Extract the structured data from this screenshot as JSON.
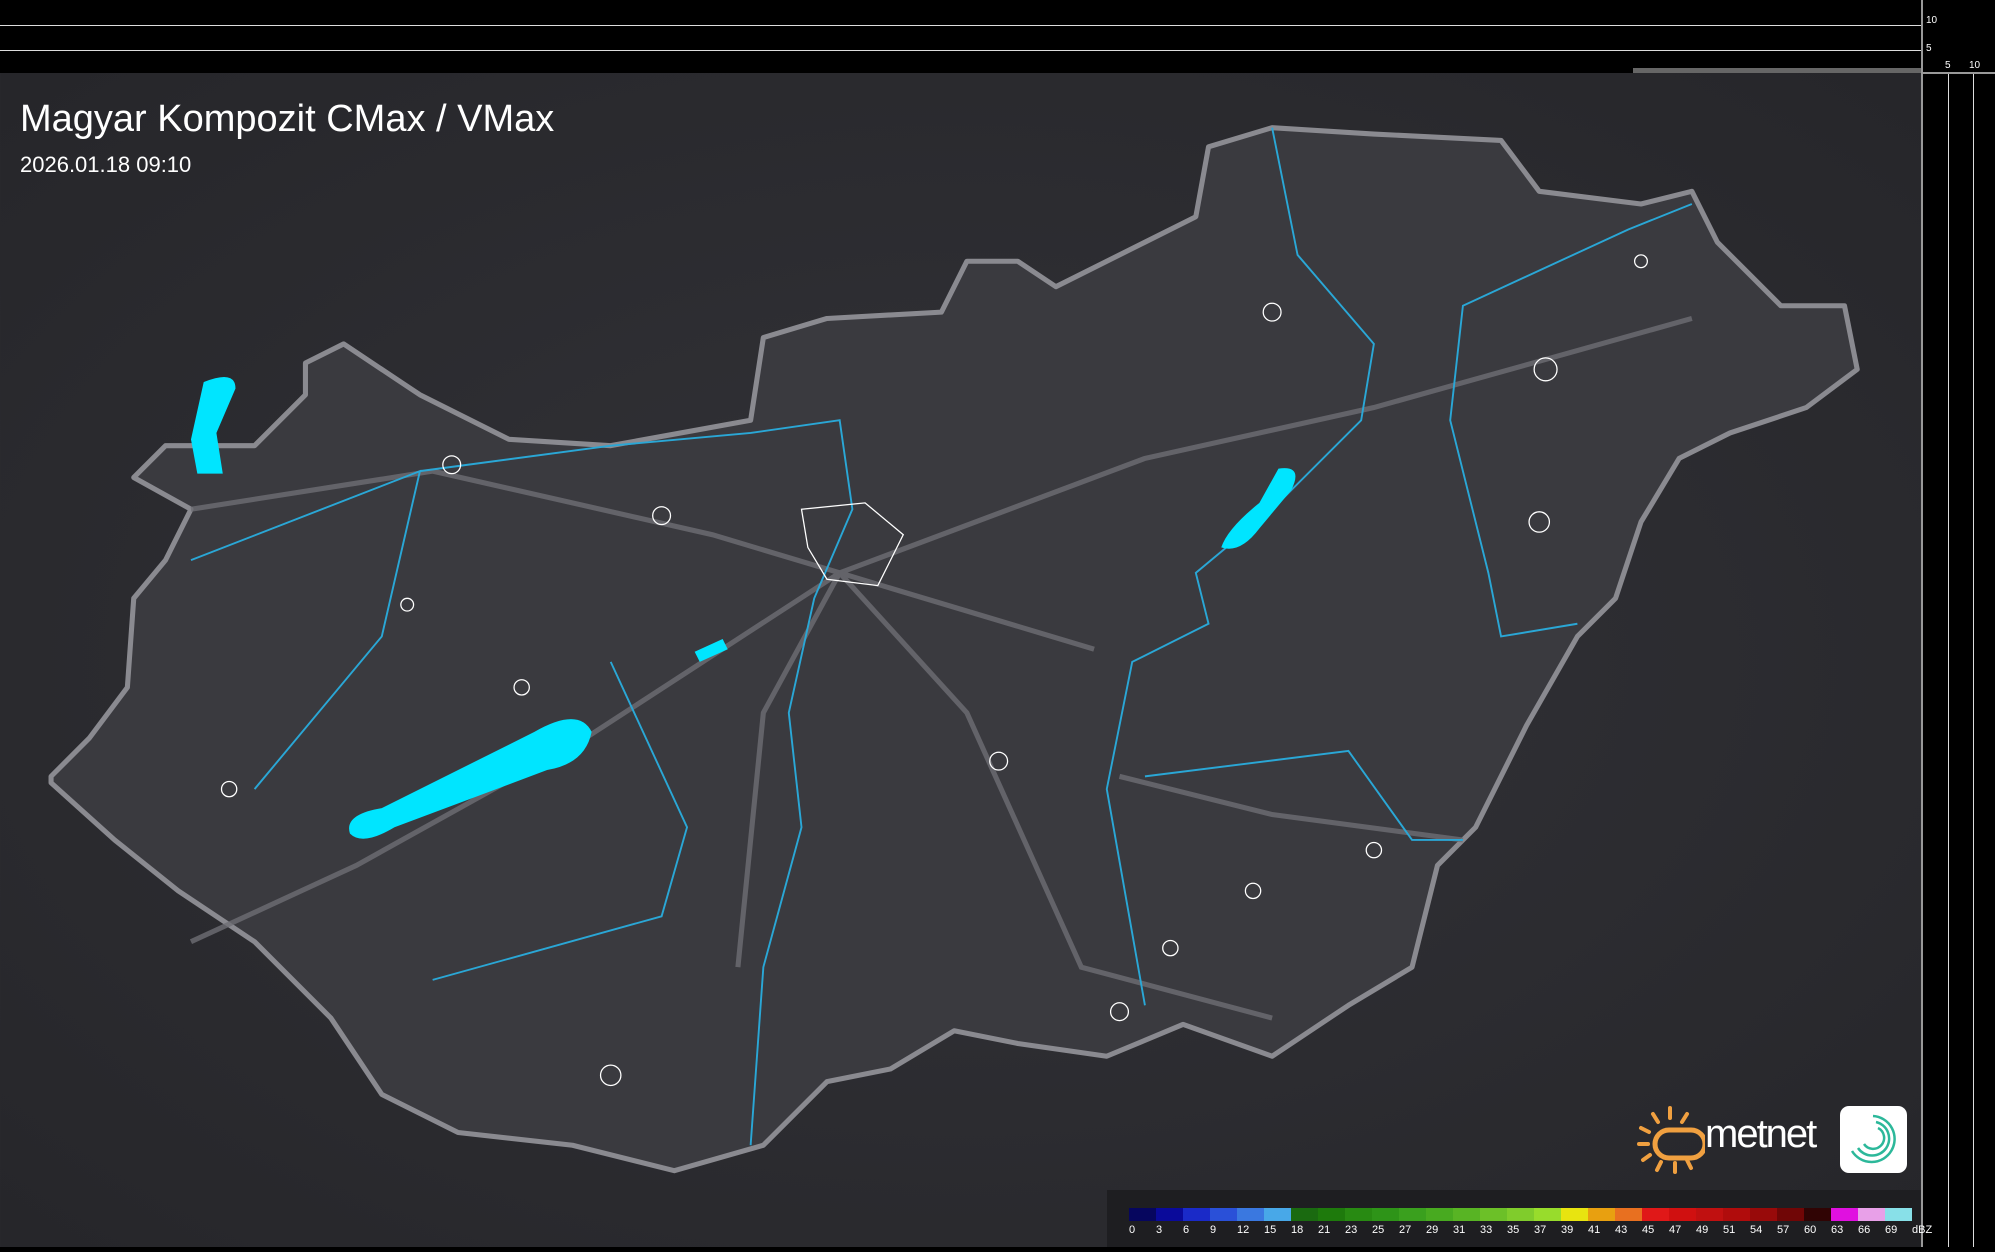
{
  "title": "Magyar Kompozit CMax / VMax",
  "timestamp": "2026.01.18 09:10",
  "axes": {
    "right_ticks": [
      "10",
      "5"
    ],
    "bottom_ticks": [
      "5",
      "10"
    ]
  },
  "logo": {
    "brand": "metnet",
    "icon": "swirl-logo-icon"
  },
  "colors": {
    "background": "#2b2b2f",
    "border": "#8a8a90",
    "water": "#00e5ff",
    "river": "#2aa7d6"
  },
  "legend": {
    "unit": "dBZ",
    "labels": [
      "0",
      "3",
      "6",
      "9",
      "12",
      "15",
      "18",
      "21",
      "23",
      "25",
      "27",
      "29",
      "31",
      "33",
      "35",
      "37",
      "39",
      "41",
      "43",
      "45",
      "47",
      "49",
      "51",
      "54",
      "57",
      "60",
      "63",
      "66",
      "69"
    ],
    "colors": [
      "#06065e",
      "#0a0a9a",
      "#1a2ac8",
      "#2a50d8",
      "#3a78e0",
      "#48a8e8",
      "#1a6a10",
      "#1e7a0c",
      "#288a12",
      "#2e9418",
      "#3aa01e",
      "#48aa20",
      "#58b424",
      "#6cc028",
      "#80cc2c",
      "#98dc2c",
      "#e8e410",
      "#e8a010",
      "#e87020",
      "#e01818",
      "#d01010",
      "#c01010",
      "#b00c0c",
      "#980a0a",
      "#700606",
      "#300404",
      "#e010e0",
      "#e8a0e8",
      "#88e0e8"
    ]
  }
}
